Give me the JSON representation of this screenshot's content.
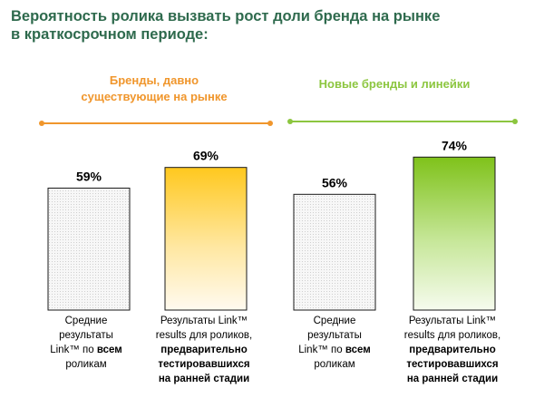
{
  "title": {
    "line1": "Вероятность ролика вызвать рост доли бренда на рынке",
    "line2": "в краткосрочном периоде:"
  },
  "colors": {
    "title": "#2e6a4d",
    "group1": "#f0962c",
    "group2": "#8cc63f",
    "bar_avg": "#f4f4f4",
    "bar_orange_top": "#ffc81e",
    "bar_green_top": "#7fc21a"
  },
  "groups": [
    {
      "label_line1": "Бренды, давно",
      "label_line2": "существующие на рынке",
      "color": "#f0962c"
    },
    {
      "label_line1": "Новые бренды и линейки",
      "label_line2": "",
      "color": "#8cc63f"
    }
  ],
  "categories": [
    {
      "line1": "Средние",
      "line2": "результаты",
      "line3_a": "Link™ по ",
      "line3_b": "всем",
      "line4": "роликам"
    },
    {
      "line1": "Результаты Link™",
      "line2": "results для роликов,",
      "line3": "предварительно",
      "line4": "тестировавшихся",
      "line5": "на ранней стадии"
    },
    {
      "line1": "Средние",
      "line2": "результаты",
      "line3_a": "Link™ по ",
      "line3_b": "всем",
      "line4": "роликам"
    },
    {
      "line1": "Результаты Link™",
      "line2": "results для роликов,",
      "line3": "предварительно",
      "line4": "тестировавшихся",
      "line5": "на ранней стадии"
    }
  ],
  "chart_data": {
    "type": "bar",
    "title": "Вероятность ролика вызвать рост доли бренда на рынке в краткосрочном периоде:",
    "series": [
      {
        "group": "Бренды, давно существующие на рынке",
        "values": [
          59,
          69
        ]
      },
      {
        "group": "Новые бренды и линейки",
        "values": [
          56,
          74
        ]
      }
    ],
    "values": [
      59,
      69,
      56,
      74
    ],
    "value_labels": [
      "59%",
      "69%",
      "56%",
      "74%"
    ],
    "unit": "%",
    "ylim": [
      0,
      100
    ],
    "grid": false
  }
}
